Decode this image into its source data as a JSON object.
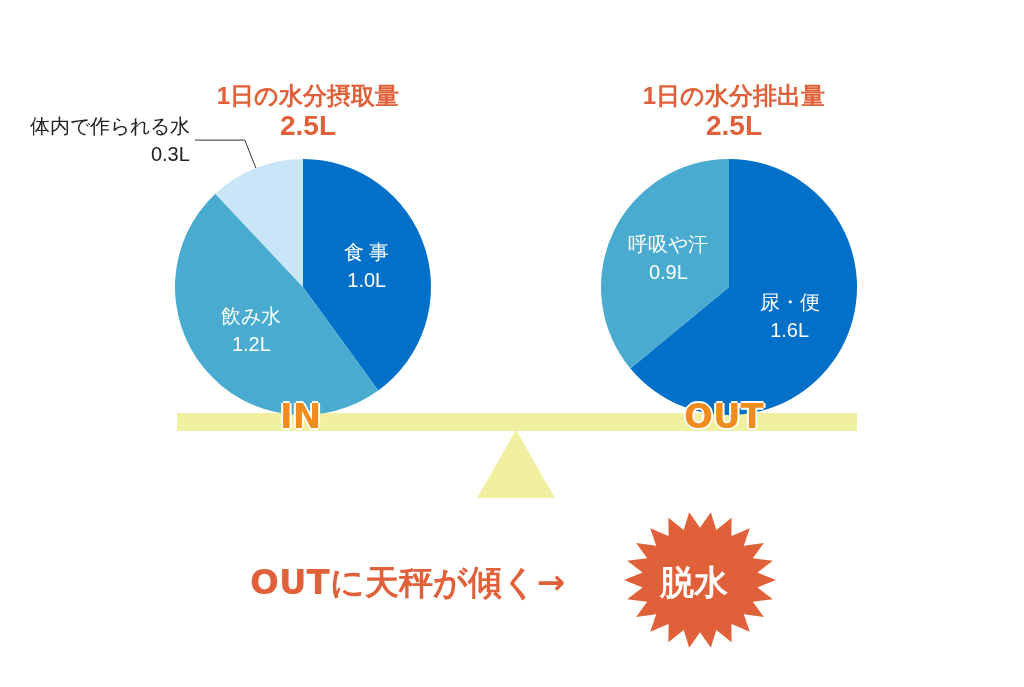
{
  "chart_data": [
    {
      "type": "pie",
      "title": "1日の水分摂取量",
      "subtitle": "2.5L",
      "categories": [
        "食 事",
        "飲み水",
        "体内で作られる水"
      ],
      "values": [
        1.0,
        1.2,
        0.3
      ],
      "value_labels": [
        "1.0L",
        "1.2L",
        "0.3L"
      ],
      "colors": [
        "#0070c8",
        "#4aabd0",
        "#c8e6f8"
      ],
      "legend": false,
      "annotations": [
        "IN"
      ]
    },
    {
      "type": "pie",
      "title": "1日の水分排出量",
      "subtitle": "2.5L",
      "categories": [
        "尿・便",
        "呼吸や汗"
      ],
      "values": [
        1.6,
        0.9
      ],
      "value_labels": [
        "1.6L",
        "0.9L"
      ],
      "colors": [
        "#0070c8",
        "#4aabd0"
      ],
      "legend": false,
      "annotations": [
        "OUT",
        "OUTに天秤が傾く→",
        "脱水"
      ]
    }
  ]
}
